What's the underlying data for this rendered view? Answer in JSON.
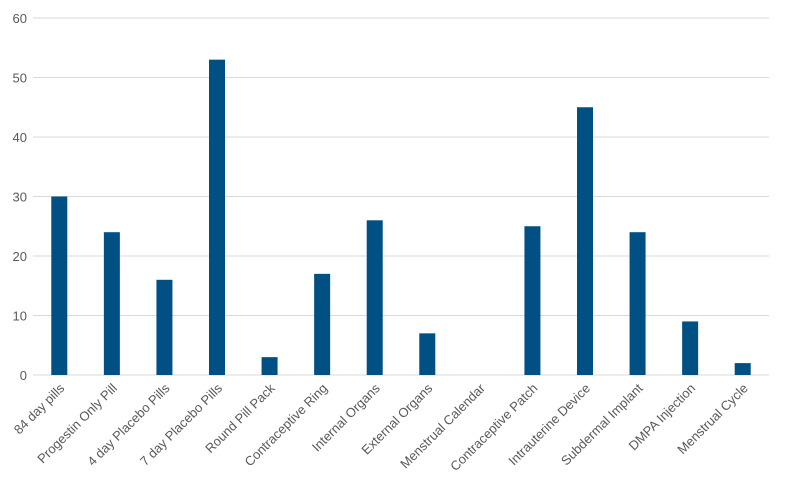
{
  "chart_data": {
    "type": "bar",
    "title": "",
    "xlabel": "",
    "ylabel": "",
    "ylim": [
      0,
      60
    ],
    "yticks": [
      0,
      10,
      20,
      30,
      40,
      50,
      60
    ],
    "grid": true,
    "legend": "none",
    "bar_color": "#005083",
    "grid_color": "#d9d9d9",
    "categories": [
      "84 day pills",
      "Progestin Only Pill",
      "4 day Placebo Pills",
      "7 day Placebo Pills",
      "Round Pill Pack",
      "Contraceptive Ring",
      "Internal Organs",
      "External Organs",
      "Menstrual Calendar",
      "Contraceptive Patch",
      "Intrauterine Device",
      "Subdermal Implant",
      "DMPA Injection",
      "Menstrual Cycle"
    ],
    "values": [
      30,
      24,
      16,
      53,
      3,
      17,
      26,
      7,
      0,
      25,
      45,
      24,
      9,
      2
    ]
  }
}
